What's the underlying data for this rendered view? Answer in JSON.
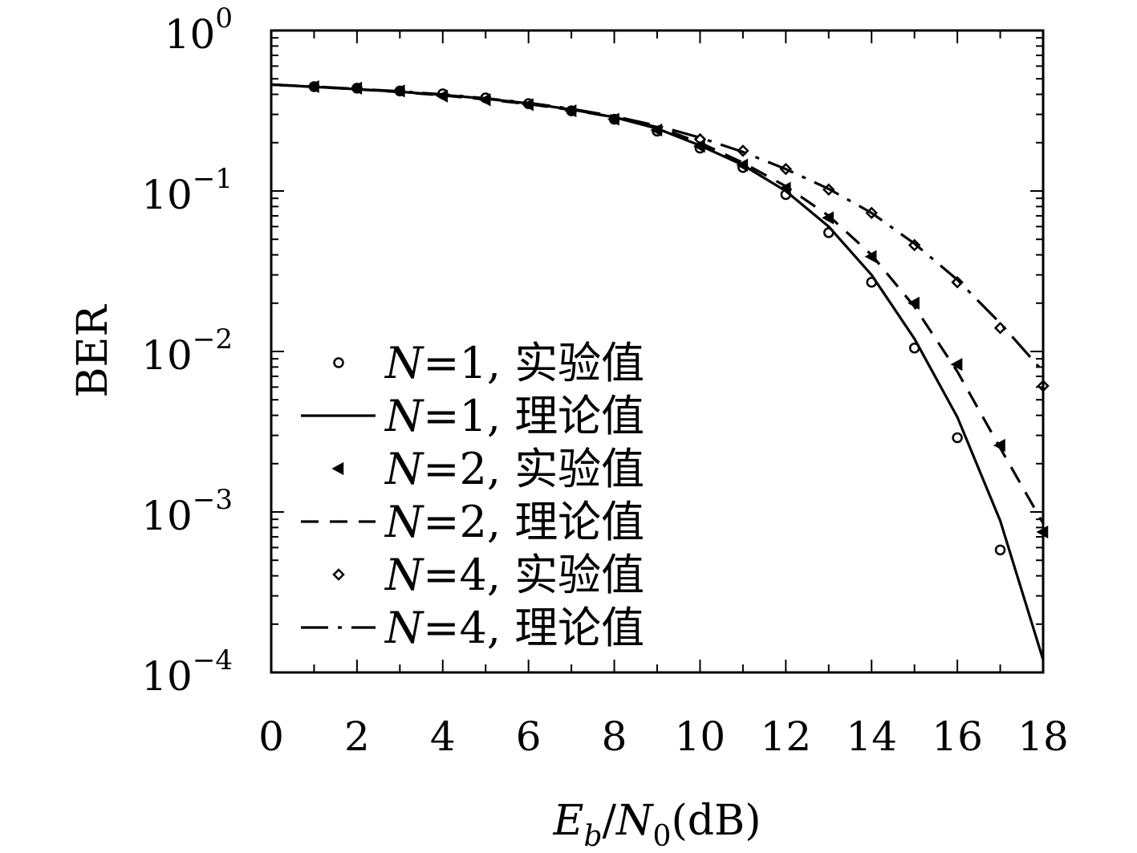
{
  "chart_data": {
    "type": "line",
    "xlabel": {
      "main": "E",
      "sub": "b",
      "slash": "/",
      "main2": "N",
      "sub2": "0",
      "unit": "(dB)"
    },
    "ylabel": "BER",
    "xlim": [
      0,
      18
    ],
    "ylim": [
      0.0001,
      1
    ],
    "yscale": "log",
    "grid": false,
    "legend_position": "lower-left",
    "x_ticks": [
      "0",
      "2",
      "4",
      "6",
      "8",
      "10",
      "12",
      "14",
      "16",
      "18"
    ],
    "y_ticks": [
      {
        "base": "10",
        "exp": "0"
      },
      {
        "base": "10",
        "exp": "−1"
      },
      {
        "base": "10",
        "exp": "−2"
      },
      {
        "base": "10",
        "exp": "−3"
      },
      {
        "base": "10",
        "exp": "−4"
      }
    ],
    "series": [
      {
        "name": {
          "n": "N",
          "eq": "=1, ",
          "label": "实验值"
        },
        "kind": "marker",
        "marker": "circle",
        "x": [
          1,
          2,
          3,
          4,
          5,
          6,
          7,
          8,
          9,
          10,
          11,
          12,
          13,
          14,
          15,
          16,
          17
        ],
        "y": [
          0.447,
          0.437,
          0.42,
          0.403,
          0.38,
          0.35,
          0.316,
          0.28,
          0.236,
          0.185,
          0.14,
          0.095,
          0.055,
          0.027,
          0.0105,
          0.0029,
          0.00058
        ]
      },
      {
        "name": {
          "n": "N",
          "eq": "=1, ",
          "label": "理论值"
        },
        "kind": "line",
        "dash": "solid",
        "x": [
          0,
          1,
          2,
          3,
          4,
          5,
          6,
          7,
          8,
          9,
          10,
          11,
          12,
          13,
          14,
          15,
          16,
          17,
          18
        ],
        "y": [
          0.46,
          0.445,
          0.431,
          0.415,
          0.397,
          0.376,
          0.351,
          0.322,
          0.288,
          0.245,
          0.192,
          0.145,
          0.1,
          0.06,
          0.03,
          0.012,
          0.0039,
          0.00088,
          0.00012
        ]
      },
      {
        "name": {
          "n": "N",
          "eq": "=2, ",
          "label": "实验值"
        },
        "kind": "marker",
        "marker": "left-triangle",
        "x": [
          1,
          2,
          3,
          4,
          5,
          6,
          7,
          8,
          9,
          10,
          11,
          12,
          13,
          14,
          15,
          16,
          17,
          18
        ],
        "y": [
          0.447,
          0.437,
          0.42,
          0.39,
          0.37,
          0.345,
          0.316,
          0.28,
          0.24,
          0.19,
          0.145,
          0.104,
          0.068,
          0.039,
          0.02,
          0.0083,
          0.0026,
          0.00075
        ]
      },
      {
        "name": {
          "n": "N",
          "eq": "=2, ",
          "label": "理论值"
        },
        "kind": "line",
        "dash": "dashed",
        "x": [
          0,
          1,
          2,
          3,
          4,
          5,
          6,
          7,
          8,
          9,
          10,
          11,
          12,
          13,
          14,
          15,
          16,
          17,
          18
        ],
        "y": [
          0.46,
          0.445,
          0.43,
          0.413,
          0.394,
          0.372,
          0.348,
          0.32,
          0.288,
          0.25,
          0.2,
          0.15,
          0.107,
          0.07,
          0.04,
          0.019,
          0.0075,
          0.0025,
          0.00085
        ]
      },
      {
        "name": {
          "n": "N",
          "eq": "=4, ",
          "label": "实验值"
        },
        "kind": "marker",
        "marker": "diamond",
        "x": [
          10,
          11,
          12,
          13,
          14,
          15,
          16,
          17,
          18
        ],
        "y": [
          0.21,
          0.178,
          0.137,
          0.102,
          0.073,
          0.046,
          0.027,
          0.014,
          0.0061
        ]
      },
      {
        "name": {
          "n": "N",
          "eq": "=4, ",
          "label": "理论值"
        },
        "kind": "line",
        "dash": "dashdot",
        "x": [
          0,
          1,
          2,
          3,
          4,
          5,
          6,
          7,
          8,
          9,
          10,
          11,
          12,
          13,
          14,
          15,
          16,
          17,
          18
        ],
        "y": [
          0.46,
          0.447,
          0.433,
          0.418,
          0.4,
          0.378,
          0.354,
          0.325,
          0.292,
          0.255,
          0.215,
          0.175,
          0.137,
          0.103,
          0.073,
          0.047,
          0.028,
          0.015,
          0.0075
        ]
      }
    ]
  }
}
